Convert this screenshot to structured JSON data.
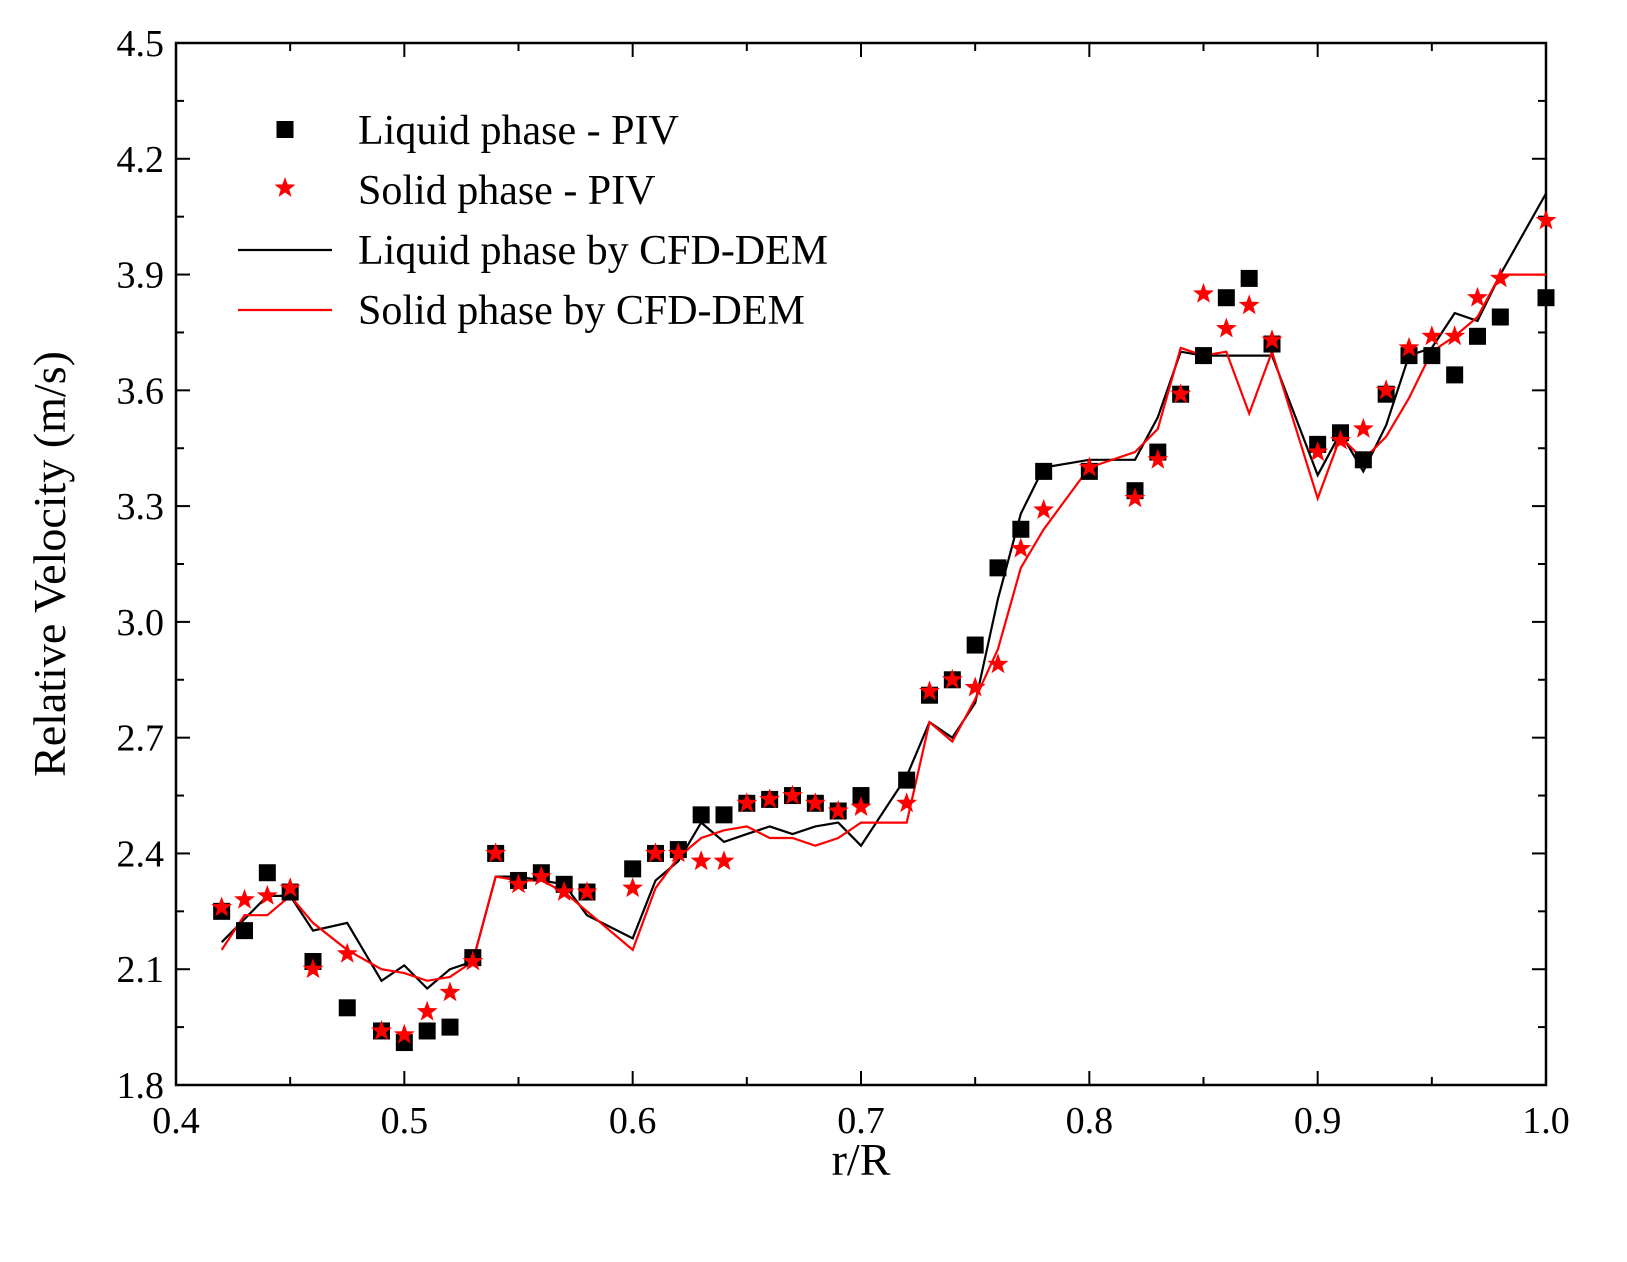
{
  "chart_data": {
    "type": "scatter",
    "xlabel": "r/R",
    "ylabel": "Relative Velocity (m/s)",
    "xlim": [
      0.4,
      1.0
    ],
    "ylim": [
      1.8,
      4.5
    ],
    "xticks": [
      0.4,
      0.5,
      0.6,
      0.7,
      0.8,
      0.9,
      1.0
    ],
    "xtick_labels": [
      "0.4",
      "0.5",
      "0.6",
      "0.7",
      "0.8",
      "0.9",
      "1.0"
    ],
    "yticks": [
      1.8,
      2.1,
      2.4,
      2.7,
      3.0,
      3.3,
      3.6,
      3.9,
      4.2,
      4.5
    ],
    "ytick_labels": [
      "1.8",
      "2.1",
      "2.4",
      "2.7",
      "3.0",
      "3.3",
      "3.6",
      "3.9",
      "4.2",
      "4.5"
    ],
    "grid": false,
    "legend_position": "top-left",
    "series": [
      {
        "name": "Liquid phase - PIV",
        "style": "square-marker",
        "color": "#000000",
        "x": [
          0.42,
          0.43,
          0.44,
          0.45,
          0.46,
          0.475,
          0.49,
          0.5,
          0.51,
          0.52,
          0.53,
          0.54,
          0.55,
          0.56,
          0.57,
          0.58,
          0.6,
          0.61,
          0.62,
          0.63,
          0.64,
          0.65,
          0.66,
          0.67,
          0.68,
          0.69,
          0.7,
          0.72,
          0.73,
          0.74,
          0.75,
          0.76,
          0.77,
          0.78,
          0.8,
          0.82,
          0.83,
          0.84,
          0.85,
          0.86,
          0.87,
          0.88,
          0.9,
          0.91,
          0.92,
          0.93,
          0.94,
          0.95,
          0.96,
          0.97,
          0.98,
          1.0
        ],
        "y": [
          2.25,
          2.2,
          2.35,
          2.3,
          2.12,
          2.0,
          1.94,
          1.91,
          1.94,
          1.95,
          2.13,
          2.4,
          2.33,
          2.35,
          2.32,
          2.3,
          2.36,
          2.4,
          2.41,
          2.5,
          2.5,
          2.53,
          2.54,
          2.55,
          2.53,
          2.51,
          2.55,
          2.59,
          2.81,
          2.85,
          2.94,
          3.14,
          3.24,
          3.39,
          3.39,
          3.34,
          3.44,
          3.59,
          3.69,
          3.84,
          3.89,
          3.72,
          3.46,
          3.49,
          3.42,
          3.59,
          3.69,
          3.69,
          3.64,
          3.74,
          3.79,
          3.84
        ]
      },
      {
        "name": "Solid phase - PIV",
        "style": "star-marker",
        "color": "#ff0000",
        "x": [
          0.42,
          0.43,
          0.44,
          0.45,
          0.46,
          0.475,
          0.49,
          0.5,
          0.51,
          0.52,
          0.53,
          0.54,
          0.55,
          0.56,
          0.57,
          0.58,
          0.6,
          0.61,
          0.62,
          0.63,
          0.64,
          0.65,
          0.66,
          0.67,
          0.68,
          0.69,
          0.7,
          0.72,
          0.73,
          0.74,
          0.75,
          0.76,
          0.77,
          0.78,
          0.8,
          0.82,
          0.83,
          0.84,
          0.85,
          0.86,
          0.87,
          0.88,
          0.9,
          0.91,
          0.92,
          0.93,
          0.94,
          0.95,
          0.96,
          0.97,
          0.98,
          1.0
        ],
        "y": [
          2.26,
          2.28,
          2.29,
          2.31,
          2.1,
          2.14,
          1.94,
          1.93,
          1.99,
          2.04,
          2.12,
          2.4,
          2.32,
          2.34,
          2.3,
          2.3,
          2.31,
          2.4,
          2.4,
          2.38,
          2.38,
          2.53,
          2.54,
          2.55,
          2.53,
          2.51,
          2.52,
          2.53,
          2.82,
          2.85,
          2.83,
          2.89,
          3.19,
          3.29,
          3.4,
          3.32,
          3.42,
          3.59,
          3.85,
          3.76,
          3.82,
          3.73,
          3.44,
          3.47,
          3.5,
          3.6,
          3.71,
          3.74,
          3.74,
          3.84,
          3.89,
          4.04
        ]
      },
      {
        "name": "Liquid phase by CFD-DEM",
        "style": "line",
        "color": "#000000",
        "x": [
          0.42,
          0.44,
          0.45,
          0.46,
          0.475,
          0.49,
          0.5,
          0.51,
          0.52,
          0.53,
          0.54,
          0.55,
          0.56,
          0.57,
          0.58,
          0.6,
          0.61,
          0.62,
          0.63,
          0.64,
          0.65,
          0.66,
          0.67,
          0.68,
          0.69,
          0.7,
          0.72,
          0.73,
          0.74,
          0.75,
          0.76,
          0.77,
          0.78,
          0.8,
          0.82,
          0.83,
          0.84,
          0.85,
          0.86,
          0.88,
          0.9,
          0.91,
          0.92,
          0.93,
          0.94,
          0.95,
          0.96,
          0.97,
          0.98,
          1.0
        ],
        "y": [
          2.17,
          2.29,
          2.29,
          2.2,
          2.22,
          2.07,
          2.11,
          2.05,
          2.1,
          2.12,
          2.34,
          2.34,
          2.33,
          2.32,
          2.24,
          2.18,
          2.33,
          2.38,
          2.48,
          2.43,
          2.45,
          2.47,
          2.45,
          2.47,
          2.48,
          2.42,
          2.6,
          2.74,
          2.7,
          2.79,
          3.06,
          3.28,
          3.4,
          3.42,
          3.42,
          3.53,
          3.7,
          3.69,
          3.69,
          3.69,
          3.38,
          3.49,
          3.39,
          3.51,
          3.69,
          3.71,
          3.8,
          3.78,
          3.9,
          4.11
        ]
      },
      {
        "name": "Solid phase by CFD-DEM",
        "style": "line",
        "color": "#ff0000",
        "x": [
          0.42,
          0.43,
          0.44,
          0.45,
          0.46,
          0.475,
          0.49,
          0.5,
          0.51,
          0.52,
          0.53,
          0.54,
          0.55,
          0.56,
          0.57,
          0.58,
          0.6,
          0.61,
          0.62,
          0.63,
          0.64,
          0.65,
          0.66,
          0.67,
          0.68,
          0.69,
          0.7,
          0.72,
          0.73,
          0.74,
          0.75,
          0.76,
          0.77,
          0.78,
          0.8,
          0.82,
          0.83,
          0.84,
          0.85,
          0.86,
          0.87,
          0.88,
          0.9,
          0.91,
          0.92,
          0.93,
          0.94,
          0.95,
          0.96,
          0.97,
          0.98,
          1.0
        ],
        "y": [
          2.15,
          2.24,
          2.24,
          2.29,
          2.22,
          2.15,
          2.1,
          2.09,
          2.07,
          2.08,
          2.12,
          2.34,
          2.33,
          2.33,
          2.3,
          2.25,
          2.15,
          2.31,
          2.39,
          2.44,
          2.46,
          2.47,
          2.44,
          2.44,
          2.42,
          2.44,
          2.48,
          2.48,
          2.74,
          2.69,
          2.8,
          2.93,
          3.14,
          3.24,
          3.4,
          3.44,
          3.5,
          3.71,
          3.69,
          3.7,
          3.54,
          3.7,
          3.32,
          3.48,
          3.42,
          3.48,
          3.58,
          3.7,
          3.74,
          3.79,
          3.9,
          3.9
        ]
      }
    ]
  }
}
